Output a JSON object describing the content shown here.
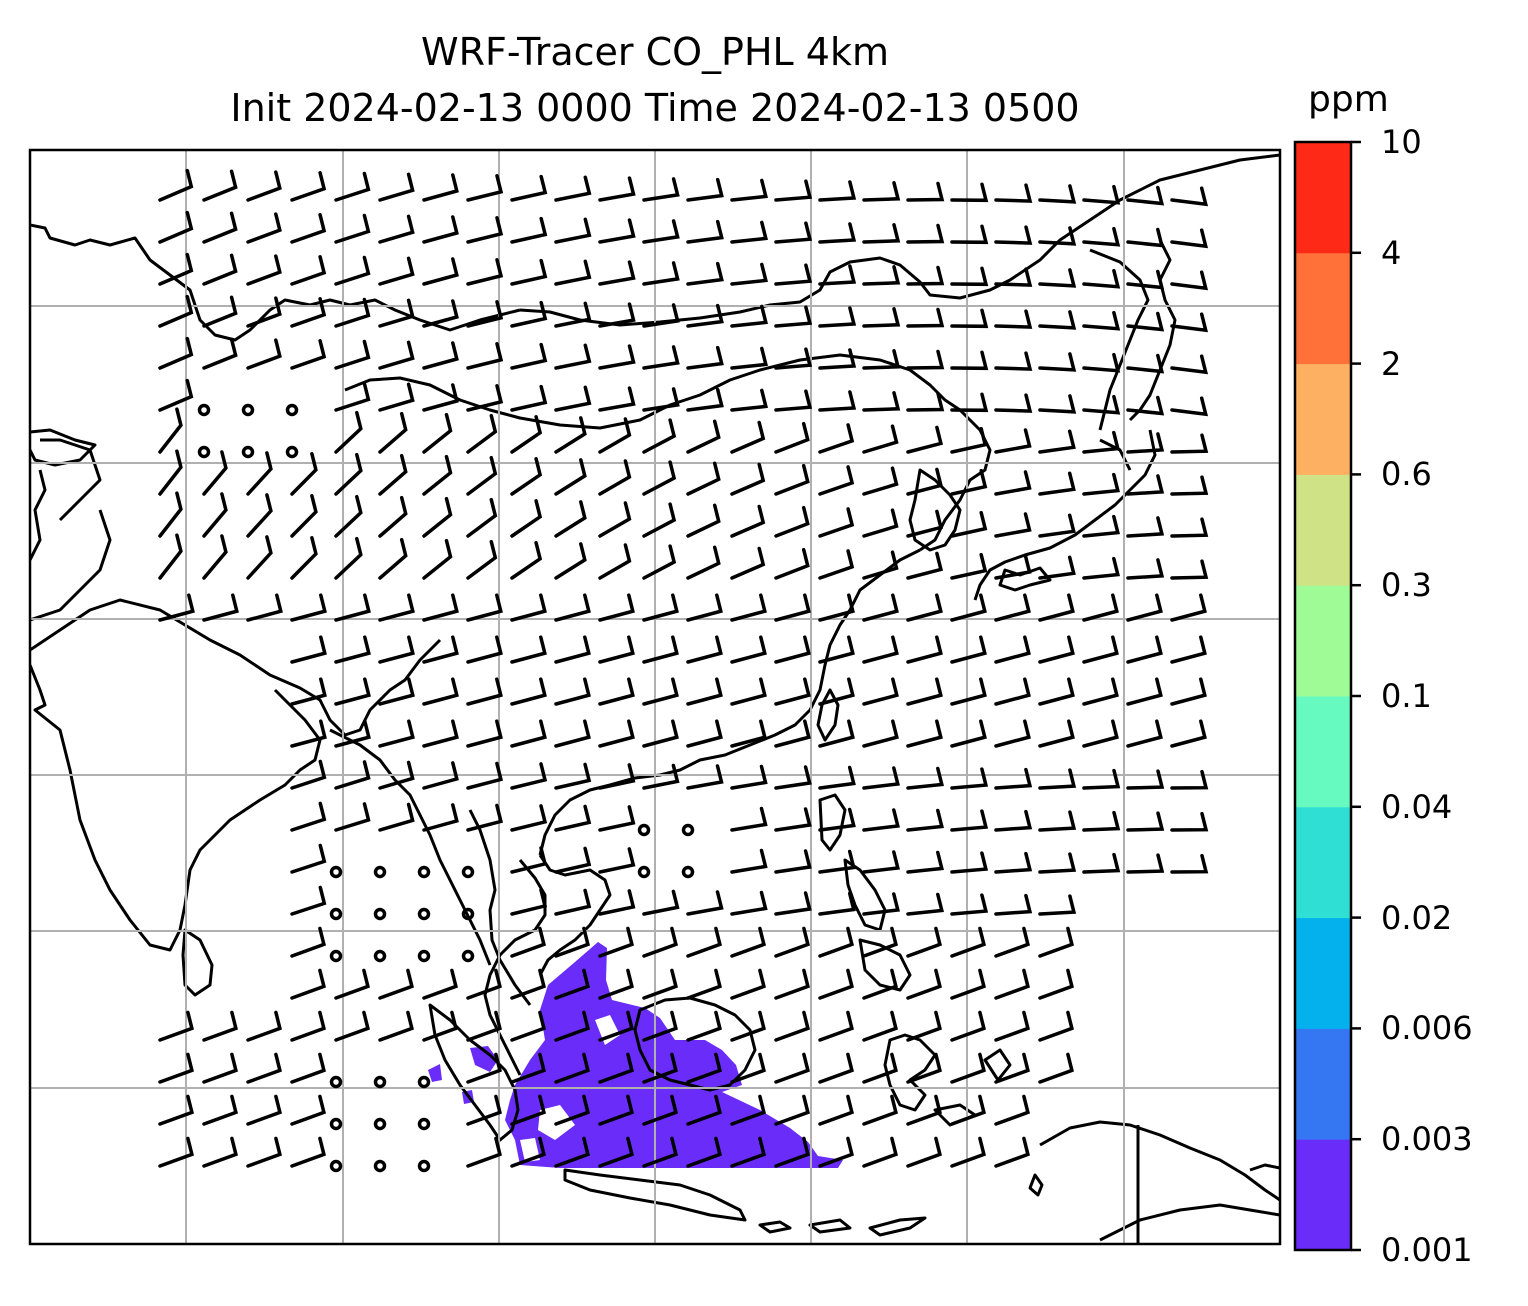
{
  "title": {
    "line1": "WRF-Tracer CO_PHL 4km",
    "line2": "Init 2024-02-13 0000 Time 2024-02-13 0500"
  },
  "colorbar": {
    "unit": "ppm",
    "levels": [
      {
        "label": "0.001",
        "color": "#6a2cf8"
      },
      {
        "label": "0.003",
        "color": "#3576f3"
      },
      {
        "label": "0.006",
        "color": "#04b1ec"
      },
      {
        "label": "0.02",
        "color": "#30dfd4"
      },
      {
        "label": "0.04",
        "color": "#66f9c0"
      },
      {
        "label": "0.1",
        "color": "#9ffb96"
      },
      {
        "label": "0.3",
        "color": "#cfe285"
      },
      {
        "label": "0.6",
        "color": "#fdb062"
      },
      {
        "label": "2",
        "color": "#ff7139"
      },
      {
        "label": "4",
        "color": "#fe2a17"
      },
      {
        "label": "10",
        "color": null
      }
    ]
  },
  "map": {
    "gridlines": true,
    "tracer_color": "#6a2cf8",
    "features": [
      "coastlines",
      "wind-barbs",
      "tracer-plume"
    ]
  }
}
